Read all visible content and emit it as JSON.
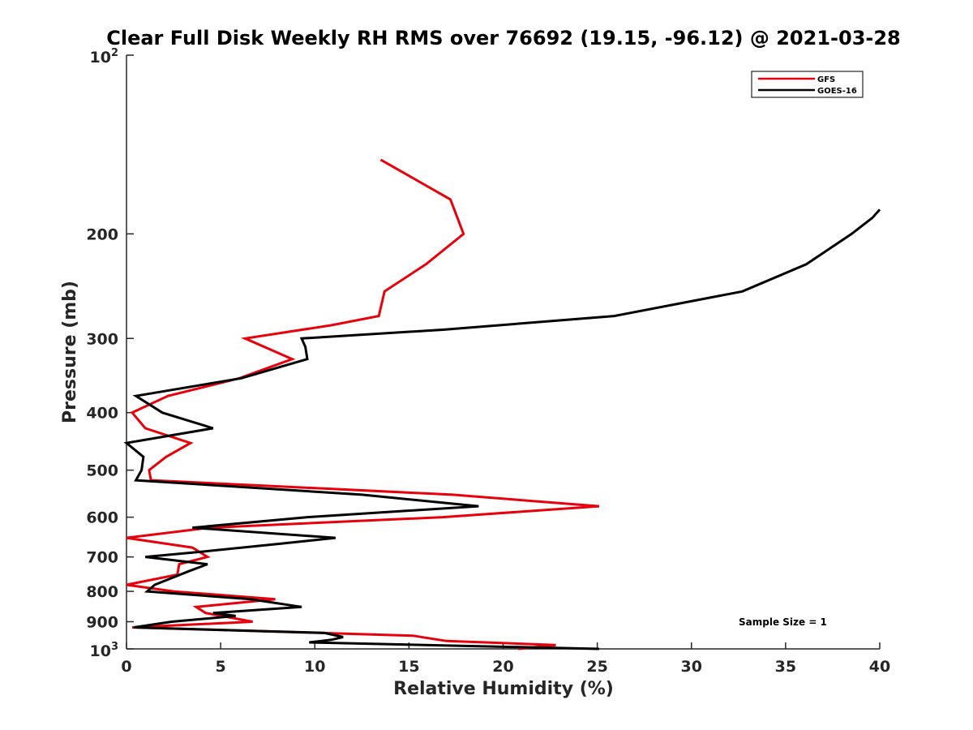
{
  "chart_data": {
    "type": "line",
    "title": "Clear Full Disk Weekly RH RMS over 76692 (19.15, -96.12) @ 2021-03-28",
    "xlabel": "Relative Humidity (%)",
    "ylabel": "Pressure (mb)",
    "xlim": [
      0,
      40
    ],
    "ylim": [
      100,
      1000
    ],
    "yscale": "log",
    "y_reversed": true,
    "x_ticks": [
      0,
      5,
      10,
      15,
      20,
      25,
      30,
      35,
      40
    ],
    "x_tick_labels": [
      "0",
      "5",
      "10",
      "15",
      "20",
      "25",
      "30",
      "35",
      "40"
    ],
    "y_ticks": [
      200,
      300,
      400,
      500,
      600,
      700,
      800,
      900
    ],
    "y_tick_labels": [
      "200",
      "300",
      "400",
      "500",
      "600",
      "700",
      "800",
      "900"
    ],
    "y_end_labels": {
      "top_base": "10",
      "top_exp": "2",
      "bottom_base": "10",
      "bottom_exp": "3"
    },
    "legend": {
      "position": "top-right",
      "entries": [
        "GFS",
        "GOES-16"
      ]
    },
    "annotation": "Sample Size = 1",
    "series": [
      {
        "name": "GFS",
        "color": "#e8000b",
        "points": [
          [
            13.5,
            150
          ],
          [
            17.2,
            175
          ],
          [
            17.9,
            200
          ],
          [
            15.9,
            225
          ],
          [
            13.7,
            250
          ],
          [
            13.4,
            275
          ],
          [
            10.9,
            285
          ],
          [
            6.3,
            300
          ],
          [
            8.8,
            325
          ],
          [
            6.0,
            350
          ],
          [
            2.2,
            375
          ],
          [
            0.3,
            400
          ],
          [
            1.0,
            425
          ],
          [
            3.4,
            450
          ],
          [
            2.1,
            475
          ],
          [
            1.2,
            500
          ],
          [
            1.3,
            520
          ],
          [
            17.3,
            550
          ],
          [
            25.1,
            575
          ],
          [
            16.8,
            600
          ],
          [
            4.4,
            625
          ],
          [
            0.0,
            650
          ],
          [
            3.5,
            675
          ],
          [
            4.3,
            700
          ],
          [
            2.8,
            720
          ],
          [
            2.7,
            750
          ],
          [
            0.0,
            780
          ],
          [
            2.5,
            800
          ],
          [
            7.9,
            825
          ],
          [
            3.7,
            850
          ],
          [
            4.2,
            870
          ],
          [
            6.7,
            900
          ],
          [
            0.3,
            920
          ],
          [
            15.2,
            950
          ],
          [
            17.0,
            970
          ],
          [
            22.8,
            985
          ],
          [
            20.8,
            1000
          ]
        ]
      },
      {
        "name": "GOES-16",
        "color": "#000000",
        "points": [
          [
            40.0,
            182
          ],
          [
            39.6,
            188
          ],
          [
            38.5,
            200
          ],
          [
            36.1,
            225
          ],
          [
            32.7,
            250
          ],
          [
            25.9,
            275
          ],
          [
            16.8,
            290
          ],
          [
            9.3,
            300
          ],
          [
            9.5,
            310
          ],
          [
            9.6,
            325
          ],
          [
            6.1,
            350
          ],
          [
            0.5,
            375
          ],
          [
            1.9,
            400
          ],
          [
            4.6,
            425
          ],
          [
            0.0,
            450
          ],
          [
            0.9,
            475
          ],
          [
            0.8,
            500
          ],
          [
            0.5,
            520
          ],
          [
            12.5,
            550
          ],
          [
            18.7,
            575
          ],
          [
            9.6,
            600
          ],
          [
            3.5,
            625
          ],
          [
            11.1,
            650
          ],
          [
            8.2,
            665
          ],
          [
            4.2,
            685
          ],
          [
            1.0,
            700
          ],
          [
            4.3,
            720
          ],
          [
            3.3,
            740
          ],
          [
            1.5,
            780
          ],
          [
            1.1,
            800
          ],
          [
            6.6,
            825
          ],
          [
            9.3,
            850
          ],
          [
            4.6,
            870
          ],
          [
            5.8,
            880
          ],
          [
            2.4,
            900
          ],
          [
            0.4,
            920
          ],
          [
            10.5,
            940
          ],
          [
            11.5,
            955
          ],
          [
            10.9,
            965
          ],
          [
            9.7,
            975
          ],
          [
            25.1,
            1000
          ]
        ]
      }
    ]
  }
}
